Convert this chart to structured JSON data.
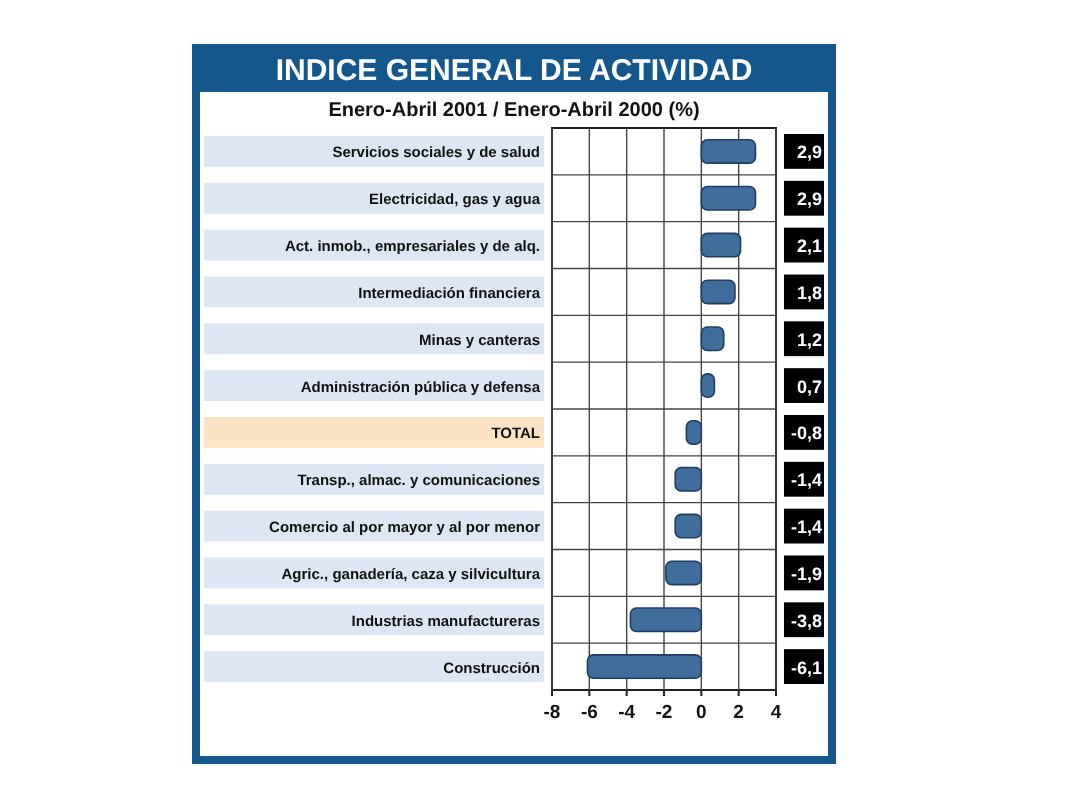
{
  "chart_data": {
    "type": "bar",
    "orientation": "horizontal",
    "title": "INDICE GENERAL DE ACTIVIDAD",
    "subtitle": "Enero-Abril 2001 / Enero-Abril 2000 (%)",
    "categories": [
      "Servicios sociales y de salud",
      "Electricidad, gas y agua",
      "Act. inmob., empresariales y de alq.",
      "Intermediación financiera",
      "Minas y canteras",
      "Administración pública y defensa",
      "TOTAL",
      "Transp., almac. y comunicaciones",
      "Comercio al por mayor y al por menor",
      "Agric., ganadería, caza y silvicultura",
      "Industrias manufactureras",
      "Construcción"
    ],
    "values": [
      2.9,
      2.9,
      2.1,
      1.8,
      1.2,
      0.7,
      -0.8,
      -1.4,
      -1.4,
      -1.9,
      -3.8,
      -6.1
    ],
    "value_labels": [
      "2,9",
      "2,9",
      "2,1",
      "1,8",
      "1,2",
      "0,7",
      "-0,8",
      "-1,4",
      "-1,4",
      "-1,9",
      "-3,8",
      "-6,1"
    ],
    "color": "#3f6d9c",
    "xlim": [
      -8,
      4
    ],
    "xticks": [
      -8,
      -6,
      -4,
      -2,
      0,
      2,
      4
    ],
    "grid": "x"
  }
}
